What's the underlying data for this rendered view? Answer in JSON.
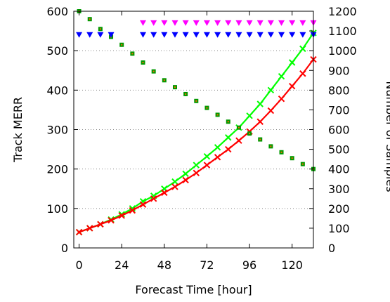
{
  "chart_data": {
    "type": "line",
    "xlabel": "Forecast Time [hour]",
    "ylabel_left": "Track MERR",
    "ylabel_right": "Number of Samples",
    "x_ticks": [
      0,
      24,
      48,
      72,
      96,
      120
    ],
    "y_left_ticks": [
      0,
      100,
      200,
      300,
      400,
      500,
      600
    ],
    "y_right_ticks": [
      0,
      100,
      200,
      300,
      400,
      500,
      600,
      700,
      800,
      900,
      1000,
      1100,
      1200
    ],
    "xlim": [
      -3,
      132
    ],
    "ylim_left": [
      0,
      600
    ],
    "ylim_right": [
      0,
      1200
    ],
    "grid": "horizontal dotted",
    "x": [
      0,
      6,
      12,
      18,
      24,
      30,
      36,
      42,
      48,
      54,
      60,
      66,
      72,
      78,
      84,
      90,
      96,
      102,
      108,
      114,
      120,
      126,
      132
    ],
    "series": [
      {
        "axis": "left",
        "color": "#00ff00",
        "marker": "x",
        "values": [
          40,
          50,
          60,
          72,
          85,
          100,
          118,
          132,
          150,
          168,
          188,
          210,
          232,
          255,
          280,
          305,
          335,
          365,
          400,
          435,
          470,
          505,
          545
        ]
      },
      {
        "axis": "left",
        "color": "#ff0000",
        "marker": "x",
        "values": [
          40,
          50,
          60,
          70,
          82,
          95,
          110,
          125,
          140,
          155,
          172,
          190,
          210,
          230,
          250,
          272,
          295,
          320,
          348,
          378,
          410,
          442,
          478
        ]
      },
      {
        "axis": "right",
        "color": "#009900",
        "marker": "square-dot",
        "values": [
          1200,
          1160,
          1110,
          1070,
          1030,
          985,
          940,
          895,
          850,
          815,
          780,
          745,
          710,
          675,
          640,
          610,
          580,
          550,
          515,
          485,
          455,
          425,
          400
        ]
      },
      {
        "axis": "right",
        "color": "#0000ff",
        "marker": "triangle-down",
        "x": [
          0,
          6,
          12,
          18,
          36,
          42,
          48,
          54,
          60,
          66,
          72,
          78,
          84,
          90,
          96,
          102,
          108,
          114,
          120,
          126,
          132
        ],
        "values": [
          1080,
          1080,
          1080,
          1080,
          1080,
          1080,
          1080,
          1080,
          1080,
          1080,
          1080,
          1080,
          1080,
          1080,
          1080,
          1080,
          1080,
          1080,
          1080,
          1080,
          1080
        ]
      },
      {
        "axis": "right",
        "color": "#ff00ff",
        "marker": "triangle-down",
        "x": [
          36,
          42,
          48,
          54,
          60,
          66,
          72,
          78,
          84,
          90,
          96,
          102,
          108,
          114,
          120,
          126,
          132
        ],
        "values": [
          1140,
          1140,
          1140,
          1140,
          1140,
          1140,
          1140,
          1140,
          1140,
          1140,
          1140,
          1140,
          1140,
          1140,
          1140,
          1140,
          1140
        ]
      }
    ]
  }
}
